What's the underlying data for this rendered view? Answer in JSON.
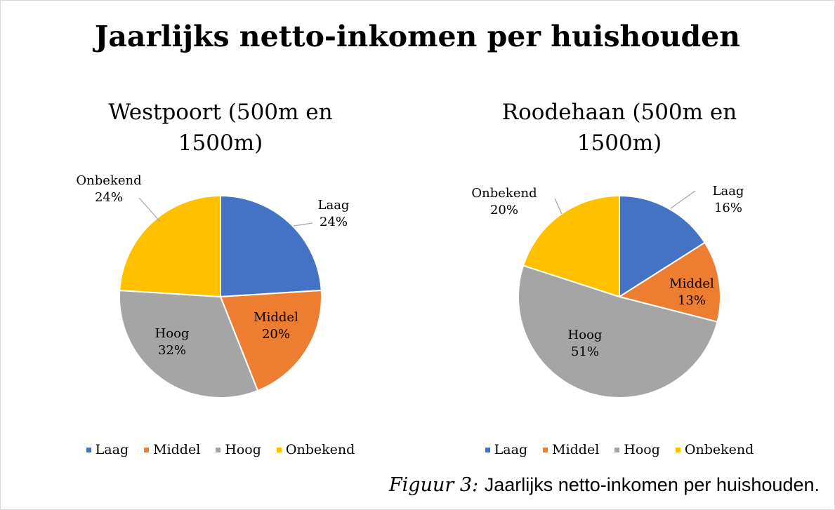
{
  "title": "Jaarlijks netto-inkomen per huishouden",
  "chart_data": [
    {
      "type": "pie",
      "title": "Westpoort (500m en 1500m)",
      "categories": [
        "Laag",
        "Middel",
        "Hoog",
        "Onbekend"
      ],
      "values": [
        24,
        20,
        32,
        24
      ],
      "value_labels": [
        "24%",
        "20%",
        "32%",
        "24%"
      ],
      "colors": [
        "#4472c4",
        "#ed7d31",
        "#a5a5a5",
        "#ffc000"
      ],
      "legend": "bottom"
    },
    {
      "type": "pie",
      "title": "Roodehaan (500m en 1500m)",
      "categories": [
        "Laag",
        "Middel",
        "Hoog",
        "Onbekend"
      ],
      "values": [
        16,
        13,
        51,
        20
      ],
      "value_labels": [
        "16%",
        "13%",
        "51%",
        "20%"
      ],
      "colors": [
        "#4472c4",
        "#ed7d31",
        "#a5a5a5",
        "#ffc000"
      ],
      "legend": "bottom"
    }
  ],
  "caption": {
    "label": "Figuur 3:",
    "text": "Jaarlijks netto-inkomen per huishouden."
  }
}
